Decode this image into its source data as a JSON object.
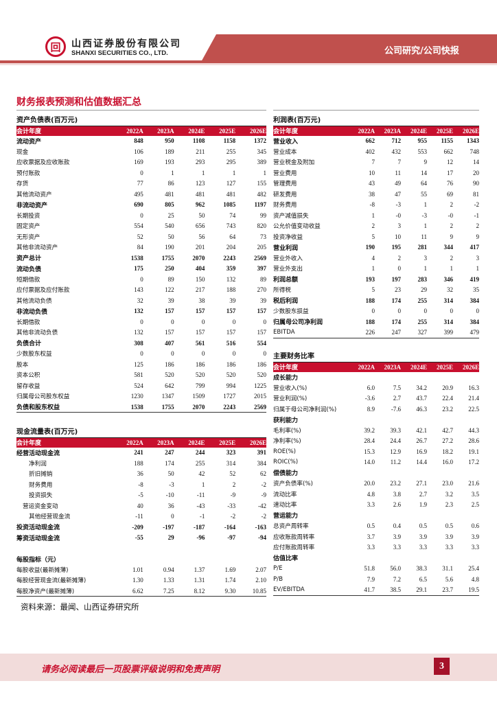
{
  "header": {
    "logo_glyph": "回",
    "company_cn": "山西证券股份有限公司",
    "company_en": "SHANXI SECURITIES CO., LTD.",
    "section": "公司研究/公司快报",
    "accent": "#c0504d"
  },
  "page_title": "财务报表预测和估值数据汇总",
  "columns_label": "会计年度",
  "years": [
    "2022A",
    "2023A",
    "2024E",
    "2025E",
    "2026E"
  ],
  "balance_sheet": {
    "title": "资产负债表(百万元)",
    "rows": [
      {
        "label": "流动资产",
        "values": [
          "848",
          "950",
          "1108",
          "1158",
          "1372"
        ],
        "bold": true
      },
      {
        "label": "现金",
        "values": [
          "106",
          "189",
          "211",
          "255",
          "345"
        ]
      },
      {
        "label": "应收票据及应收账款",
        "values": [
          "169",
          "193",
          "293",
          "295",
          "389"
        ]
      },
      {
        "label": "预付账款",
        "values": [
          "0",
          "1",
          "1",
          "1",
          "1"
        ]
      },
      {
        "label": "存货",
        "values": [
          "77",
          "86",
          "123",
          "127",
          "155"
        ]
      },
      {
        "label": "其他流动资产",
        "values": [
          "495",
          "481",
          "481",
          "481",
          "482"
        ]
      },
      {
        "label": "非流动资产",
        "values": [
          "690",
          "805",
          "962",
          "1085",
          "1197"
        ],
        "bold": true
      },
      {
        "label": "长期投资",
        "values": [
          "0",
          "25",
          "50",
          "74",
          "99"
        ]
      },
      {
        "label": "固定资产",
        "values": [
          "554",
          "540",
          "656",
          "743",
          "820"
        ]
      },
      {
        "label": "无形资产",
        "values": [
          "52",
          "50",
          "56",
          "64",
          "73"
        ]
      },
      {
        "label": "其他非流动资产",
        "values": [
          "84",
          "190",
          "201",
          "204",
          "205"
        ]
      },
      {
        "label": "资产总计",
        "values": [
          "1538",
          "1755",
          "2070",
          "2243",
          "2569"
        ],
        "bold": true
      },
      {
        "label": "流动负债",
        "values": [
          "175",
          "250",
          "404",
          "359",
          "397"
        ],
        "bold": true
      },
      {
        "label": "短期借款",
        "values": [
          "0",
          "89",
          "150",
          "132",
          "89"
        ]
      },
      {
        "label": "应付票据及应付账款",
        "values": [
          "143",
          "122",
          "217",
          "188",
          "270"
        ]
      },
      {
        "label": "其他流动负债",
        "values": [
          "32",
          "39",
          "38",
          "39",
          "39"
        ]
      },
      {
        "label": "非流动负债",
        "values": [
          "132",
          "157",
          "157",
          "157",
          "157"
        ],
        "bold": true
      },
      {
        "label": "长期借款",
        "values": [
          "0",
          "0",
          "0",
          "0",
          "0"
        ]
      },
      {
        "label": "其他非流动负债",
        "values": [
          "132",
          "157",
          "157",
          "157",
          "157"
        ]
      },
      {
        "label": "负债合计",
        "values": [
          "308",
          "407",
          "561",
          "516",
          "554"
        ],
        "bold": true
      },
      {
        "label": "少数股东权益",
        "values": [
          "0",
          "0",
          "0",
          "0",
          "0"
        ]
      },
      {
        "label": "股本",
        "values": [
          "125",
          "186",
          "186",
          "186",
          "186"
        ]
      },
      {
        "label": "资本公积",
        "values": [
          "581",
          "520",
          "520",
          "520",
          "520"
        ]
      },
      {
        "label": "留存收益",
        "values": [
          "524",
          "642",
          "799",
          "994",
          "1225"
        ]
      },
      {
        "label": "归属母公司股东权益",
        "values": [
          "1230",
          "1347",
          "1509",
          "1727",
          "2015"
        ]
      },
      {
        "label": "负债和股东权益",
        "values": [
          "1538",
          "1755",
          "2070",
          "2243",
          "2569"
        ],
        "bold": true
      }
    ]
  },
  "cash_flow": {
    "title": "现金流量表(百万元)",
    "rows": [
      {
        "label": "经营活动现金流",
        "values": [
          "241",
          "247",
          "244",
          "323",
          "391"
        ],
        "bold": true
      },
      {
        "label": "净利润",
        "values": [
          "188",
          "174",
          "255",
          "314",
          "384"
        ],
        "indent": 2
      },
      {
        "label": "折旧摊销",
        "values": [
          "36",
          "50",
          "42",
          "52",
          "62"
        ],
        "indent": 2
      },
      {
        "label": "财务费用",
        "values": [
          "-8",
          "-3",
          "1",
          "2",
          "-2"
        ],
        "indent": 2
      },
      {
        "label": "投资损失",
        "values": [
          "-5",
          "-10",
          "-11",
          "-9",
          "-9"
        ],
        "indent": 2
      },
      {
        "label": "营运资金变动",
        "values": [
          "40",
          "36",
          "-43",
          "-33",
          "-42"
        ],
        "indent": 1
      },
      {
        "label": "其他经营现金流",
        "values": [
          "-11",
          "0",
          "-1",
          "-2",
          "-2"
        ],
        "indent": 2
      },
      {
        "label": "投资活动现金流",
        "values": [
          "-209",
          "-197",
          "-187",
          "-164",
          "-163"
        ],
        "bold": true
      },
      {
        "label": "筹资活动现金流",
        "values": [
          "-55",
          "29",
          "-96",
          "-97",
          "-94"
        ],
        "bold": true
      },
      {
        "blank": true
      },
      {
        "label": "每股指标（元）",
        "bold": true
      },
      {
        "label": "每股收益(最新摊薄)",
        "values": [
          "1.01",
          "0.94",
          "1.37",
          "1.69",
          "2.07"
        ]
      },
      {
        "label": "每股经营现金流(最新摊薄)",
        "values": [
          "1.30",
          "1.33",
          "1.31",
          "1.74",
          "2.10"
        ]
      },
      {
        "label": "每股净资产(最新摊薄)",
        "values": [
          "6.62",
          "7.25",
          "8.12",
          "9.30",
          "10.85"
        ]
      }
    ]
  },
  "income": {
    "title": "利润表(百万元)",
    "rows": [
      {
        "label": "营业收入",
        "values": [
          "662",
          "712",
          "955",
          "1155",
          "1343"
        ],
        "bold": true
      },
      {
        "label": "营业成本",
        "values": [
          "402",
          "432",
          "553",
          "662",
          "748"
        ]
      },
      {
        "label": "营业税金及附加",
        "values": [
          "7",
          "7",
          "9",
          "12",
          "14"
        ]
      },
      {
        "label": "营业费用",
        "values": [
          "10",
          "11",
          "14",
          "17",
          "20"
        ]
      },
      {
        "label": "管理费用",
        "values": [
          "43",
          "49",
          "64",
          "76",
          "90"
        ]
      },
      {
        "label": "研发费用",
        "values": [
          "38",
          "47",
          "55",
          "69",
          "81"
        ]
      },
      {
        "label": "财务费用",
        "values": [
          "-8",
          "-3",
          "1",
          "2",
          "-2"
        ]
      },
      {
        "label": "资产减值损失",
        "values": [
          "1",
          "-0",
          "-3",
          "-0",
          "-1"
        ]
      },
      {
        "label": "公允价值变动收益",
        "values": [
          "2",
          "3",
          "1",
          "2",
          "2"
        ]
      },
      {
        "label": "投资净收益",
        "values": [
          "5",
          "10",
          "11",
          "9",
          "9"
        ]
      },
      {
        "label": "营业利润",
        "values": [
          "190",
          "195",
          "281",
          "344",
          "417"
        ],
        "bold": true
      },
      {
        "label": "营业外收入",
        "values": [
          "4",
          "2",
          "3",
          "2",
          "3"
        ]
      },
      {
        "label": "营业外支出",
        "values": [
          "1",
          "0",
          "1",
          "1",
          "1"
        ]
      },
      {
        "label": "利润总额",
        "values": [
          "193",
          "197",
          "283",
          "346",
          "419"
        ],
        "bold": true
      },
      {
        "label": "所得税",
        "values": [
          "5",
          "23",
          "29",
          "32",
          "35"
        ]
      },
      {
        "label": "税后利润",
        "values": [
          "188",
          "174",
          "255",
          "314",
          "384"
        ],
        "bold": true
      },
      {
        "label": "少数股东损益",
        "values": [
          "0",
          "0",
          "0",
          "0",
          "0"
        ]
      },
      {
        "label": "归属母公司净利润",
        "values": [
          "188",
          "174",
          "255",
          "314",
          "384"
        ],
        "bold": true
      },
      {
        "label": "EBITDA",
        "values": [
          "226",
          "247",
          "327",
          "399",
          "479"
        ]
      }
    ]
  },
  "ratios": {
    "title": "主要财务比率",
    "rows": [
      {
        "label": "成长能力",
        "bold": true
      },
      {
        "label": "营业收入(%)",
        "values": [
          "6.0",
          "7.5",
          "34.2",
          "20.9",
          "16.3"
        ]
      },
      {
        "label": "营业利润(%)",
        "values": [
          "-3.6",
          "2.7",
          "43.7",
          "22.4",
          "21.4"
        ]
      },
      {
        "label": "归属于母公司净利润(%)",
        "values": [
          "8.9",
          "-7.6",
          "46.3",
          "23.2",
          "22.5"
        ]
      },
      {
        "label": "获利能力",
        "bold": true
      },
      {
        "label": "毛利率(%)",
        "values": [
          "39.2",
          "39.3",
          "42.1",
          "42.7",
          "44.3"
        ]
      },
      {
        "label": "净利率(%)",
        "values": [
          "28.4",
          "24.4",
          "26.7",
          "27.2",
          "28.6"
        ]
      },
      {
        "label": "ROE(%)",
        "values": [
          "15.3",
          "12.9",
          "16.9",
          "18.2",
          "19.1"
        ]
      },
      {
        "label": "ROIC(%)",
        "values": [
          "14.0",
          "11.2",
          "14.4",
          "16.0",
          "17.2"
        ]
      },
      {
        "label": "偿债能力",
        "bold": true
      },
      {
        "label": "资产负债率(%)",
        "values": [
          "20.0",
          "23.2",
          "27.1",
          "23.0",
          "21.6"
        ]
      },
      {
        "label": "流动比率",
        "values": [
          "4.8",
          "3.8",
          "2.7",
          "3.2",
          "3.5"
        ]
      },
      {
        "label": "速动比率",
        "values": [
          "3.3",
          "2.6",
          "1.9",
          "2.3",
          "2.5"
        ]
      },
      {
        "label": "营运能力",
        "bold": true
      },
      {
        "label": "总资产周转率",
        "values": [
          "0.5",
          "0.4",
          "0.5",
          "0.5",
          "0.6"
        ]
      },
      {
        "label": "应收账款周转率",
        "values": [
          "3.7",
          "3.9",
          "3.9",
          "3.9",
          "3.9"
        ]
      },
      {
        "label": "应付账款周转率",
        "values": [
          "3.3",
          "3.3",
          "3.3",
          "3.3",
          "3.3"
        ]
      },
      {
        "label": "估值比率",
        "bold": true
      },
      {
        "label": "P/E",
        "values": [
          "51.8",
          "56.0",
          "38.3",
          "31.1",
          "25.4"
        ]
      },
      {
        "label": "P/B",
        "values": [
          "7.9",
          "7.2",
          "6.5",
          "5.6",
          "4.8"
        ]
      },
      {
        "label": "EV/EBITDA",
        "values": [
          "41.7",
          "38.5",
          "29.1",
          "23.7",
          "19.5"
        ]
      }
    ]
  },
  "source": "资料来源：最闻、山西证券研究所",
  "footer": {
    "disclaimer": "请务必阅读最后一页股票评级说明和免责声明",
    "page_number": "3"
  }
}
